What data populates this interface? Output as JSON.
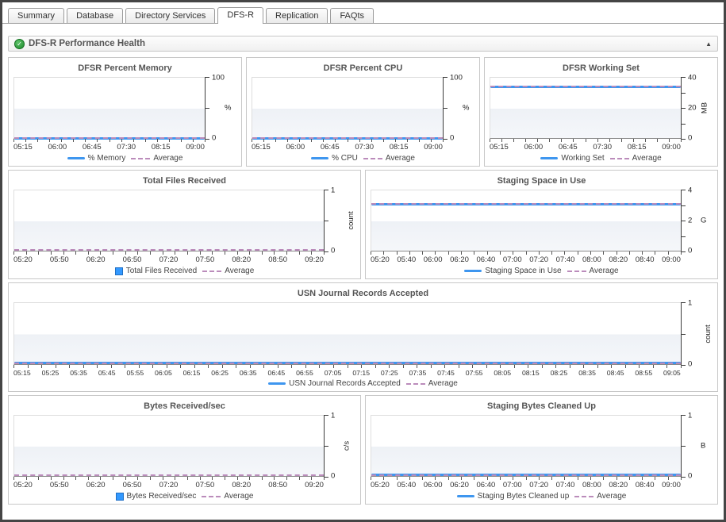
{
  "tabs": {
    "items": [
      {
        "label": "Summary",
        "active": false
      },
      {
        "label": "Database",
        "active": false
      },
      {
        "label": "Directory Services",
        "active": false
      },
      {
        "label": "DFS-R",
        "active": true
      },
      {
        "label": "Replication",
        "active": false
      },
      {
        "label": "FAQts",
        "active": false
      }
    ]
  },
  "panel": {
    "title": "DFS-R Performance Health",
    "status_icon": "green-check",
    "collapse_icon": "collapse-up-triangle",
    "collapse_glyph": "▲",
    "check_glyph": "✓"
  },
  "colors": {
    "series_blue": "#3e96ef",
    "average_dash": "#bb8cbb",
    "title_text": "#555555"
  },
  "chart_data": [
    {
      "type": "line",
      "title": "DFSR Percent Memory",
      "xlabel": "",
      "ylabel": "%",
      "ylim": [
        0,
        100
      ],
      "x": [
        "05:15",
        "06:00",
        "06:45",
        "07:30",
        "08:15",
        "09:00"
      ],
      "x_minor_ticks": 16,
      "y_axis": {
        "top": "100",
        "mid": "",
        "bottom": "0",
        "unit": "%",
        "unit_rotated": false,
        "tick_count": 3
      },
      "series": [
        {
          "name": "% Memory",
          "style": "line",
          "values": [
            0.5,
            0.5,
            0.5,
            0.5,
            0.5,
            0.5
          ]
        },
        {
          "name": "Average",
          "style": "dashed",
          "values": [
            0.5,
            0.5,
            0.5,
            0.5,
            0.5,
            0.5
          ]
        }
      ],
      "legend": [
        {
          "label": "% Memory",
          "swatch": "line"
        },
        {
          "label": "Average",
          "swatch": "dash"
        }
      ],
      "layout_span": 2
    },
    {
      "type": "line",
      "title": "DFSR Percent CPU",
      "xlabel": "",
      "ylabel": "%",
      "ylim": [
        0,
        100
      ],
      "x": [
        "05:15",
        "06:00",
        "06:45",
        "07:30",
        "08:15",
        "09:00"
      ],
      "x_minor_ticks": 16,
      "y_axis": {
        "top": "100",
        "mid": "",
        "bottom": "0",
        "unit": "%",
        "unit_rotated": false,
        "tick_count": 3
      },
      "series": [
        {
          "name": "% CPU",
          "style": "line",
          "values": [
            0.5,
            0.5,
            0.5,
            0.5,
            0.5,
            0.5
          ]
        },
        {
          "name": "Average",
          "style": "dashed",
          "values": [
            0.5,
            0.5,
            0.5,
            0.5,
            0.5,
            0.5
          ]
        }
      ],
      "legend": [
        {
          "label": "% CPU",
          "swatch": "line"
        },
        {
          "label": "Average",
          "swatch": "dash"
        }
      ],
      "layout_span": 2
    },
    {
      "type": "line",
      "title": "DFSR Working Set",
      "xlabel": "",
      "ylabel": "MB",
      "ylim": [
        0,
        40
      ],
      "x": [
        "05:15",
        "06:00",
        "06:45",
        "07:30",
        "08:15",
        "09:00"
      ],
      "x_minor_ticks": 16,
      "y_axis": {
        "top": "40",
        "mid": "20",
        "bottom": "0",
        "unit": "MB",
        "unit_rotated": true,
        "tick_count": 5
      },
      "series": [
        {
          "name": "Working Set",
          "style": "line",
          "values": [
            34,
            34,
            34,
            34,
            34.5,
            34.5
          ]
        },
        {
          "name": "Average",
          "style": "dashed",
          "values": [
            34,
            34,
            34,
            34,
            34,
            34
          ]
        }
      ],
      "legend": [
        {
          "label": "Working Set",
          "swatch": "line"
        },
        {
          "label": "Average",
          "swatch": "dash"
        }
      ],
      "layout_span": 2
    },
    {
      "type": "bar",
      "title": "Total Files Received",
      "xlabel": "",
      "ylabel": "count",
      "ylim": [
        0,
        1
      ],
      "x": [
        "05:20",
        "05:50",
        "06:20",
        "06:50",
        "07:20",
        "07:50",
        "08:20",
        "08:50",
        "09:20"
      ],
      "x_minor_ticks": 25,
      "y_axis": {
        "top": "1",
        "mid": "",
        "bottom": "0",
        "unit": "count",
        "unit_rotated": true,
        "tick_count": 3
      },
      "series": [
        {
          "name": "Total Files Received",
          "style": "bar",
          "values": [
            0,
            0,
            0,
            0,
            0,
            0,
            0,
            0,
            0
          ]
        },
        {
          "name": "Average",
          "style": "dashed",
          "values": [
            0,
            0,
            0,
            0,
            0,
            0,
            0,
            0,
            0
          ]
        }
      ],
      "legend": [
        {
          "label": "Total Files Received",
          "swatch": "square"
        },
        {
          "label": "Average",
          "swatch": "dash"
        }
      ],
      "layout_span": 3
    },
    {
      "type": "line",
      "title": "Staging Space in Use",
      "xlabel": "",
      "ylabel": "G",
      "ylim": [
        0,
        4
      ],
      "x": [
        "05:20",
        "05:40",
        "06:00",
        "06:20",
        "06:40",
        "07:00",
        "07:20",
        "07:40",
        "08:00",
        "08:20",
        "08:40",
        "09:00"
      ],
      "x_minor_ticks": 24,
      "y_axis": {
        "top": "4",
        "mid": "2",
        "bottom": "0",
        "unit": "G",
        "unit_rotated": false,
        "tick_count": 5
      },
      "series": [
        {
          "name": "Staging Space in Use",
          "style": "line",
          "values": [
            3.1,
            3.1,
            3.1,
            3.1,
            3.1,
            3.1,
            3.1,
            3.1,
            3.1,
            3.1,
            3.1,
            3.1
          ]
        },
        {
          "name": "Average",
          "style": "dashed",
          "values": [
            3.1,
            3.1,
            3.1,
            3.1,
            3.1,
            3.1,
            3.1,
            3.1,
            3.1,
            3.1,
            3.1,
            3.1
          ]
        }
      ],
      "legend": [
        {
          "label": "Staging Space in Use",
          "swatch": "line"
        },
        {
          "label": "Average",
          "swatch": "dash"
        }
      ],
      "layout_span": 3
    },
    {
      "type": "line",
      "title": "USN Journal Records Accepted",
      "xlabel": "",
      "ylabel": "count",
      "ylim": [
        0,
        1
      ],
      "x": [
        "05:15",
        "05:25",
        "05:35",
        "05:45",
        "05:55",
        "06:05",
        "06:15",
        "06:25",
        "06:35",
        "06:45",
        "06:55",
        "07:05",
        "07:15",
        "07:25",
        "07:35",
        "07:45",
        "07:55",
        "08:05",
        "08:15",
        "08:25",
        "08:35",
        "08:45",
        "08:55",
        "09:05"
      ],
      "x_minor_ticks": 48,
      "y_axis": {
        "top": "1",
        "mid": "",
        "bottom": "0",
        "unit": "count",
        "unit_rotated": true,
        "tick_count": 3
      },
      "series": [
        {
          "name": "USN Journal Records Accepted",
          "style": "line",
          "values": [
            0,
            0,
            0,
            0,
            0,
            0,
            0,
            0,
            0,
            0,
            0,
            0,
            0,
            0,
            0,
            0,
            0,
            0,
            0,
            0,
            0,
            0,
            0,
            0
          ]
        },
        {
          "name": "Average",
          "style": "dashed",
          "values": [
            0,
            0,
            0,
            0,
            0,
            0,
            0,
            0,
            0,
            0,
            0,
            0,
            0,
            0,
            0,
            0,
            0,
            0,
            0,
            0,
            0,
            0,
            0,
            0
          ]
        }
      ],
      "legend": [
        {
          "label": "USN Journal Records Accepted",
          "swatch": "line"
        },
        {
          "label": "Average",
          "swatch": "dash"
        }
      ],
      "layout_span": 6
    },
    {
      "type": "bar",
      "title": "Bytes Received/sec",
      "xlabel": "",
      "ylabel": "c/s",
      "ylim": [
        0,
        1
      ],
      "x": [
        "05:20",
        "05:50",
        "06:20",
        "06:50",
        "07:20",
        "07:50",
        "08:20",
        "08:50",
        "09:20"
      ],
      "x_minor_ticks": 25,
      "y_axis": {
        "top": "1",
        "mid": "",
        "bottom": "0",
        "unit": "c/s",
        "unit_rotated": true,
        "tick_count": 3
      },
      "series": [
        {
          "name": "Bytes Received/sec",
          "style": "bar",
          "values": [
            0,
            0,
            0,
            0,
            0,
            0,
            0,
            0,
            0
          ]
        },
        {
          "name": "Average",
          "style": "dashed",
          "values": [
            0,
            0,
            0,
            0,
            0,
            0,
            0,
            0,
            0
          ]
        }
      ],
      "legend": [
        {
          "label": "Bytes Received/sec",
          "swatch": "square"
        },
        {
          "label": "Average",
          "swatch": "dash"
        }
      ],
      "layout_span": 3
    },
    {
      "type": "line",
      "title": "Staging Bytes Cleaned Up",
      "xlabel": "",
      "ylabel": "B",
      "ylim": [
        0,
        1
      ],
      "x": [
        "05:20",
        "05:40",
        "06:00",
        "06:20",
        "06:40",
        "07:00",
        "07:20",
        "07:40",
        "08:00",
        "08:20",
        "08:40",
        "09:00"
      ],
      "x_minor_ticks": 24,
      "y_axis": {
        "top": "1",
        "mid": "",
        "bottom": "0",
        "unit": "B",
        "unit_rotated": false,
        "tick_count": 3
      },
      "series": [
        {
          "name": "Staging Bytes Cleaned up",
          "style": "line",
          "values": [
            0,
            0,
            0,
            0,
            0,
            0,
            0,
            0,
            0,
            0,
            0,
            0
          ]
        },
        {
          "name": "Average",
          "style": "dashed",
          "values": [
            0,
            0,
            0,
            0,
            0,
            0,
            0,
            0,
            0,
            0,
            0,
            0
          ]
        }
      ],
      "legend": [
        {
          "label": "Staging Bytes Cleaned up",
          "swatch": "line"
        },
        {
          "label": "Average",
          "swatch": "dash"
        }
      ],
      "layout_span": 3
    }
  ]
}
